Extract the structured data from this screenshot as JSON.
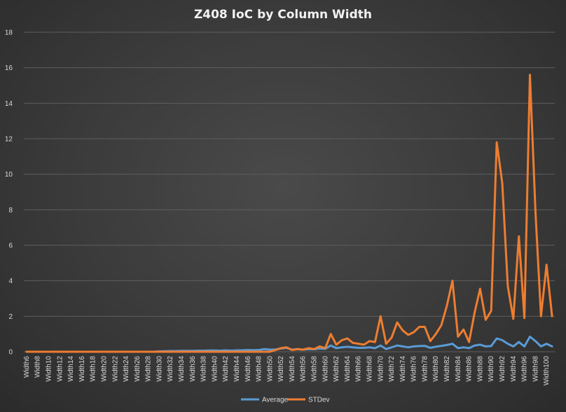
{
  "chart_data": {
    "type": "line",
    "title": "Z408 IoC by Column Width",
    "xlabel": "",
    "ylabel": "",
    "ylim": [
      0,
      18
    ],
    "yticks": [
      0,
      2,
      4,
      6,
      8,
      10,
      12,
      14,
      16,
      18
    ],
    "categories": [
      "Width6",
      "Width7",
      "Width8",
      "Width9",
      "Width10",
      "Width11",
      "Width12",
      "Width13",
      "Width14",
      "Width15",
      "Width16",
      "Width17",
      "Width18",
      "Width19",
      "Width20",
      "Width21",
      "Width22",
      "Width23",
      "Width24",
      "Width25",
      "Width26",
      "Width27",
      "Width28",
      "Width29",
      "Width30",
      "Width31",
      "Width32",
      "Width33",
      "Width34",
      "Width35",
      "Width36",
      "Width37",
      "Width38",
      "Width39",
      "Width40",
      "Width41",
      "Width42",
      "Width43",
      "Width44",
      "Width45",
      "Width46",
      "Width47",
      "Width48",
      "Width49",
      "Width50",
      "Width51",
      "Width52",
      "Width53",
      "Width54",
      "Width55",
      "Width56",
      "Width57",
      "Width58",
      "Width59",
      "Width60",
      "Width61",
      "Width62",
      "Width63",
      "Width64",
      "Width65",
      "Width66",
      "Width67",
      "Width68",
      "Width69",
      "Width70",
      "Width71",
      "Width72",
      "Width73",
      "Width74",
      "Width75",
      "Width76",
      "Width77",
      "Width78",
      "Width79",
      "Width80",
      "Width81",
      "Width82",
      "Width83",
      "Width84",
      "Width85",
      "Width86",
      "Width87",
      "Width88",
      "Width89",
      "Width90",
      "Width91",
      "Width92",
      "Width93",
      "Width94",
      "Width95",
      "Width96",
      "Width97",
      "Width98",
      "Width99",
      "Width100",
      "Width101"
    ],
    "visible_tick_labels": [
      "Width6",
      "Width8",
      "Width10",
      "Width12",
      "Width14",
      "Width16",
      "Width18",
      "Width20",
      "Width22",
      "Width24",
      "Width26",
      "Width28",
      "Width30",
      "Width32",
      "Width34",
      "Width36",
      "Width38",
      "Width40",
      "Width42",
      "Width44",
      "Width46",
      "Width48",
      "Width50",
      "Width52",
      "Width54",
      "Width56",
      "Width58",
      "Width60",
      "Width62",
      "Width64",
      "Width66",
      "Width68",
      "Width70",
      "Width72",
      "Width74",
      "Width76",
      "Width78",
      "Width80",
      "Width82",
      "Width84",
      "Width86",
      "Width88",
      "Width90",
      "Width92",
      "Width94",
      "Width96",
      "Width98",
      "Width100"
    ],
    "series": [
      {
        "name": "Average",
        "color": "#5b9bd5",
        "values": [
          0,
          0,
          0,
          0,
          0,
          0,
          0,
          0,
          0,
          0,
          0,
          0,
          0,
          0,
          0,
          0,
          0,
          0,
          0,
          0,
          0,
          0,
          0,
          0,
          0.02,
          0.03,
          0.04,
          0.04,
          0.05,
          0.05,
          0.05,
          0.06,
          0.06,
          0.07,
          0.07,
          0.06,
          0.08,
          0.06,
          0.08,
          0.08,
          0.1,
          0.09,
          0.1,
          0.15,
          0.12,
          0.13,
          0.18,
          0.22,
          0.12,
          0.15,
          0.12,
          0.15,
          0.14,
          0.18,
          0.16,
          0.35,
          0.2,
          0.25,
          0.28,
          0.25,
          0.22,
          0.22,
          0.25,
          0.2,
          0.35,
          0.15,
          0.25,
          0.35,
          0.3,
          0.25,
          0.3,
          0.32,
          0.33,
          0.22,
          0.28,
          0.33,
          0.38,
          0.45,
          0.2,
          0.25,
          0.2,
          0.35,
          0.4,
          0.3,
          0.32,
          0.75,
          0.65,
          0.45,
          0.3,
          0.55,
          0.3,
          0.85,
          0.6,
          0.3,
          0.45,
          0.3
        ]
      },
      {
        "name": "STDev",
        "color": "#ed7d31",
        "values": [
          0,
          0,
          0,
          0,
          0,
          0,
          0,
          0,
          0,
          0,
          0,
          0,
          0,
          0,
          0,
          0,
          0,
          0,
          0,
          0,
          0,
          0,
          0,
          0,
          0,
          0,
          0,
          0,
          0,
          0,
          0,
          0,
          0,
          0,
          0,
          0,
          0,
          0,
          0,
          0,
          0,
          0,
          0,
          0,
          0,
          0.1,
          0.2,
          0.25,
          0.1,
          0.15,
          0.12,
          0.2,
          0.15,
          0.3,
          0.2,
          1.0,
          0.4,
          0.65,
          0.75,
          0.5,
          0.45,
          0.4,
          0.6,
          0.55,
          2.0,
          0.45,
          0.8,
          1.65,
          1.2,
          0.95,
          1.1,
          1.4,
          1.4,
          0.6,
          1.0,
          1.5,
          2.6,
          4.0,
          0.85,
          1.25,
          0.55,
          2.2,
          3.55,
          1.8,
          2.3,
          11.8,
          9.5,
          3.7,
          1.85,
          6.5,
          1.9,
          15.6,
          7.9,
          2.0,
          4.9,
          2.0
        ]
      }
    ],
    "legend": {
      "position": "bottom",
      "entries": [
        "Average",
        "STDev"
      ]
    },
    "grid": true,
    "background": "#404040"
  }
}
